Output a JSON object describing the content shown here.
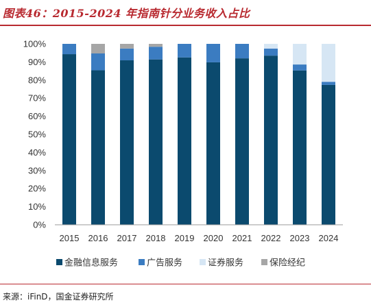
{
  "figure": {
    "title": "图表46：2015-2024 年指南针分业务收入占比",
    "source": "来源：iFinD，国金证券研究所"
  },
  "chart_data": {
    "type": "bar",
    "stacked": true,
    "categories": [
      "2015",
      "2016",
      "2017",
      "2018",
      "2019",
      "2020",
      "2021",
      "2022",
      "2023",
      "2024"
    ],
    "ylim": [
      0,
      100
    ],
    "yticks": [
      "0%",
      "10%",
      "20%",
      "30%",
      "40%",
      "50%",
      "60%",
      "70%",
      "80%",
      "90%",
      "100%"
    ],
    "grid": false,
    "legend_position": "bottom",
    "series": [
      {
        "name": "金融信息服务",
        "color": "#0b4a6e",
        "values": [
          94.3,
          85.4,
          90.9,
          91.4,
          92.5,
          89.8,
          92.0,
          93.5,
          85.3,
          77.3
        ]
      },
      {
        "name": "广告服务",
        "color": "#3b7cc1",
        "values": [
          5.7,
          9.3,
          6.5,
          7.0,
          7.5,
          10.2,
          8.0,
          3.9,
          3.3,
          1.7
        ]
      },
      {
        "name": "证券服务",
        "color": "#d6e6f4",
        "values": [
          0,
          0,
          0,
          0,
          0,
          0,
          0,
          2.6,
          11.4,
          21.0
        ]
      },
      {
        "name": "保险经纪",
        "color": "#a6a6a6",
        "values": [
          0,
          5.3,
          2.6,
          1.6,
          0,
          0,
          0,
          0,
          0,
          0
        ]
      }
    ]
  }
}
